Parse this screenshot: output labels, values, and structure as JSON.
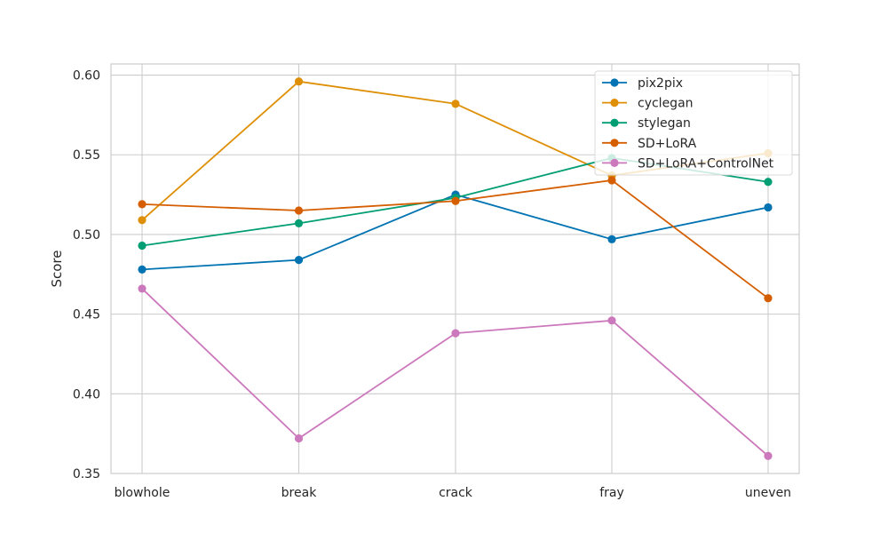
{
  "chart_data": {
    "type": "line",
    "title": "",
    "xlabel": "",
    "ylabel": "Score",
    "categories": [
      "blowhole",
      "break",
      "crack",
      "fray",
      "uneven"
    ],
    "ylim": [
      0.35,
      0.607
    ],
    "yticks": [
      0.35,
      0.4,
      0.45,
      0.5,
      0.55,
      0.6
    ],
    "ytick_labels": [
      "0.35",
      "0.40",
      "0.45",
      "0.50",
      "0.55",
      "0.60"
    ],
    "grid": true,
    "legend_position": "top-right",
    "series": [
      {
        "name": "pix2pix",
        "color": "#0173b2",
        "values": [
          0.478,
          0.484,
          0.525,
          0.497,
          0.517
        ]
      },
      {
        "name": "cyclegan",
        "color": "#de8f05",
        "values": [
          0.509,
          0.596,
          0.582,
          0.537,
          0.551
        ]
      },
      {
        "name": "stylegan",
        "color": "#029e73",
        "values": [
          0.493,
          0.507,
          0.523,
          0.548,
          0.533
        ]
      },
      {
        "name": "SD+LoRA",
        "color": "#d55e00",
        "values": [
          0.519,
          0.515,
          0.521,
          0.534,
          0.46
        ]
      },
      {
        "name": "SD+LoRA+ControlNet",
        "color": "#cc78bc",
        "values": [
          0.466,
          0.372,
          0.438,
          0.446,
          0.361
        ]
      }
    ]
  }
}
